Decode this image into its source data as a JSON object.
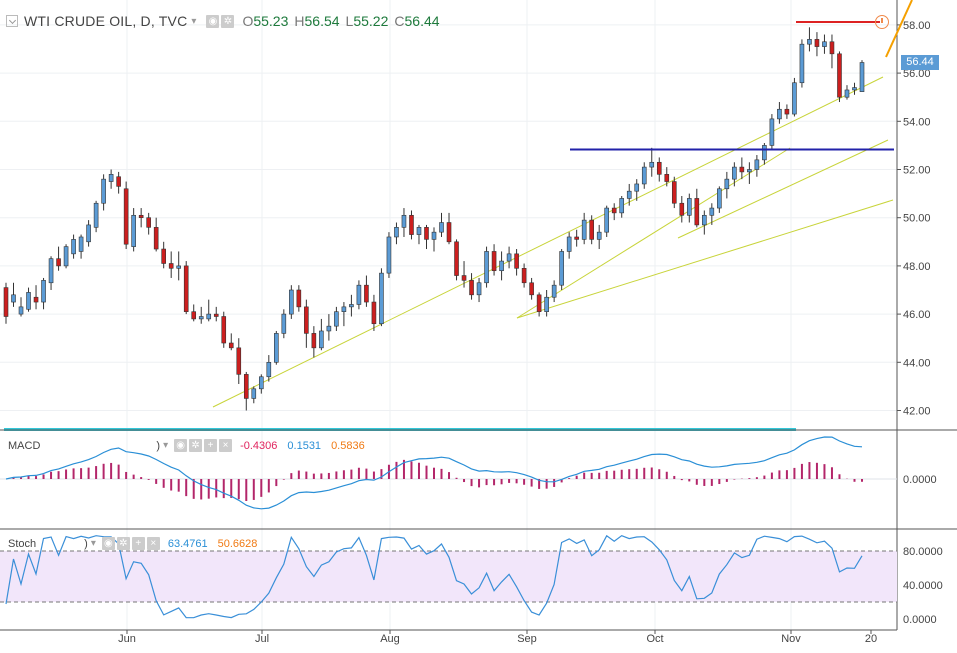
{
  "header": {
    "symbol_title": "WTI CRUDE OIL, D, TVC",
    "ohlc": [
      {
        "label": "O",
        "value": "55.23"
      },
      {
        "label": "H",
        "value": "56.54"
      },
      {
        "label": "L",
        "value": "55.22"
      },
      {
        "label": "C",
        "value": "56.44"
      }
    ]
  },
  "last_price_tag": "56.44",
  "price_axis_labels": [
    "58.00",
    "56.00",
    "54.00",
    "52.00",
    "50.00",
    "48.00",
    "46.00",
    "44.00",
    "42.00"
  ],
  "time_axis_labels": [
    "Jun",
    "Jul",
    "Aug",
    "Sep",
    "Oct",
    "Nov",
    "20"
  ],
  "macd": {
    "name": "MACD",
    "paren": ")",
    "values": [
      "-0.4306",
      "0.1531",
      "0.5836"
    ],
    "axis_label": "0.0000"
  },
  "stoch": {
    "name": "Stoch",
    "paren": ")",
    "values": [
      "63.4761",
      "50.6628"
    ],
    "axis_labels": [
      "80.0000",
      "40.0000",
      "0.0000"
    ]
  },
  "colors": {
    "up": "#5b9bd5",
    "down": "#cc1f1f",
    "trendline": "#c8d43a",
    "resistance": "#2222aa",
    "top_line": "#dd2222",
    "orange_line": "#f5a000",
    "macd_line": "#2a8fd6",
    "macd_hist": "#b3266a",
    "stoch_line": "#3a8fd8",
    "stoch_band": "#f2e6fa"
  },
  "chart_data": [
    {
      "type": "candlestick",
      "title": "WTI CRUDE OIL, D, TVC",
      "y_axis_labels": [
        42,
        44,
        46,
        48,
        50,
        52,
        54,
        56,
        58
      ],
      "x_ticks": [
        "Jun",
        "Jul",
        "Aug",
        "Sep",
        "Oct",
        "Nov",
        "20"
      ],
      "ohlc": [
        [
          47.1,
          47.3,
          45.6,
          45.9
        ],
        [
          46.5,
          47.3,
          46.3,
          46.8
        ],
        [
          46.0,
          46.7,
          45.9,
          46.3
        ],
        [
          46.2,
          47.1,
          46.1,
          46.9
        ],
        [
          46.7,
          47.2,
          46.2,
          46.5
        ],
        [
          46.5,
          47.5,
          46.2,
          47.4
        ],
        [
          47.3,
          48.4,
          47.0,
          48.3
        ],
        [
          48.3,
          48.8,
          47.8,
          48.0
        ],
        [
          48.0,
          48.9,
          47.9,
          48.8
        ],
        [
          48.5,
          49.3,
          48.3,
          49.1
        ],
        [
          48.6,
          49.3,
          48.3,
          49.2
        ],
        [
          49.0,
          49.9,
          48.8,
          49.7
        ],
        [
          49.6,
          50.7,
          49.4,
          50.6
        ],
        [
          50.6,
          51.8,
          50.3,
          51.6
        ],
        [
          51.5,
          52.0,
          51.2,
          51.8
        ],
        [
          51.7,
          51.9,
          51.0,
          51.3
        ],
        [
          51.2,
          51.5,
          48.7,
          48.9
        ],
        [
          48.8,
          50.4,
          48.6,
          50.1
        ],
        [
          50.1,
          50.4,
          49.6,
          50.0
        ],
        [
          50.0,
          50.2,
          49.3,
          49.6
        ],
        [
          49.6,
          50.0,
          48.6,
          48.7
        ],
        [
          48.7,
          49.0,
          47.9,
          48.1
        ],
        [
          48.1,
          48.6,
          47.5,
          47.9
        ],
        [
          47.9,
          48.6,
          47.4,
          48.0
        ],
        [
          48.0,
          48.2,
          46.0,
          46.1
        ],
        [
          46.1,
          46.4,
          45.7,
          45.8
        ],
        [
          45.8,
          46.3,
          45.6,
          45.9
        ],
        [
          45.8,
          46.6,
          45.7,
          46.0
        ],
        [
          46.0,
          46.3,
          45.7,
          45.9
        ],
        [
          45.9,
          46.1,
          44.6,
          44.8
        ],
        [
          44.8,
          45.2,
          44.5,
          44.6
        ],
        [
          44.6,
          45.0,
          43.1,
          43.5
        ],
        [
          43.5,
          43.6,
          42.0,
          42.5
        ],
        [
          42.5,
          43.0,
          42.3,
          42.9
        ],
        [
          42.9,
          43.5,
          42.7,
          43.4
        ],
        [
          43.4,
          44.3,
          43.2,
          44.0
        ],
        [
          44.0,
          45.3,
          43.9,
          45.2
        ],
        [
          45.2,
          46.2,
          45.0,
          46.0
        ],
        [
          46.0,
          47.2,
          45.8,
          47.0
        ],
        [
          47.0,
          47.2,
          46.1,
          46.3
        ],
        [
          46.3,
          46.6,
          44.6,
          45.2
        ],
        [
          45.2,
          45.5,
          44.2,
          44.6
        ],
        [
          44.6,
          45.8,
          44.5,
          45.3
        ],
        [
          45.3,
          46.0,
          44.9,
          45.5
        ],
        [
          45.5,
          46.3,
          45.3,
          46.1
        ],
        [
          46.1,
          46.5,
          45.5,
          46.3
        ],
        [
          46.3,
          46.8,
          45.9,
          46.4
        ],
        [
          46.4,
          47.4,
          46.2,
          47.2
        ],
        [
          47.2,
          47.6,
          46.3,
          46.5
        ],
        [
          46.5,
          46.8,
          45.3,
          45.6
        ],
        [
          45.6,
          47.9,
          45.5,
          47.7
        ],
        [
          47.7,
          49.4,
          47.5,
          49.2
        ],
        [
          49.2,
          49.8,
          48.9,
          49.6
        ],
        [
          49.6,
          50.4,
          49.2,
          50.1
        ],
        [
          50.1,
          50.3,
          49.1,
          49.3
        ],
        [
          49.3,
          49.7,
          48.9,
          49.6
        ],
        [
          49.6,
          49.7,
          48.7,
          49.1
        ],
        [
          49.1,
          49.6,
          48.6,
          49.4
        ],
        [
          49.4,
          50.2,
          49.2,
          49.8
        ],
        [
          49.8,
          50.2,
          48.9,
          49.0
        ],
        [
          49.0,
          49.1,
          47.4,
          47.6
        ],
        [
          47.6,
          48.2,
          47.1,
          47.4
        ],
        [
          47.4,
          47.7,
          46.6,
          46.8
        ],
        [
          46.8,
          47.5,
          46.5,
          47.3
        ],
        [
          47.3,
          48.8,
          47.1,
          48.6
        ],
        [
          48.6,
          48.9,
          47.6,
          47.8
        ],
        [
          47.8,
          48.6,
          47.4,
          48.2
        ],
        [
          48.2,
          48.8,
          47.9,
          48.5
        ],
        [
          48.5,
          48.7,
          47.6,
          47.9
        ],
        [
          47.9,
          48.1,
          47.1,
          47.3
        ],
        [
          47.3,
          47.5,
          46.6,
          46.8
        ],
        [
          46.8,
          46.9,
          45.9,
          46.1
        ],
        [
          46.1,
          47.0,
          45.9,
          46.7
        ],
        [
          46.7,
          47.4,
          46.5,
          47.2
        ],
        [
          47.2,
          48.7,
          47.0,
          48.6
        ],
        [
          48.6,
          49.4,
          48.3,
          49.2
        ],
        [
          49.2,
          49.5,
          48.8,
          49.1
        ],
        [
          49.1,
          50.2,
          48.9,
          49.9
        ],
        [
          49.9,
          50.1,
          48.9,
          49.1
        ],
        [
          49.1,
          49.7,
          48.7,
          49.4
        ],
        [
          49.4,
          50.5,
          49.2,
          50.4
        ],
        [
          50.4,
          50.6,
          49.9,
          50.2
        ],
        [
          50.2,
          50.9,
          50.0,
          50.8
        ],
        [
          50.8,
          51.4,
          50.5,
          51.1
        ],
        [
          51.1,
          51.6,
          50.7,
          51.4
        ],
        [
          51.4,
          52.3,
          51.2,
          52.1
        ],
        [
          52.1,
          52.9,
          51.7,
          52.3
        ],
        [
          52.3,
          52.5,
          51.5,
          51.8
        ],
        [
          51.8,
          52.1,
          51.3,
          51.5
        ],
        [
          51.5,
          51.7,
          50.4,
          50.6
        ],
        [
          50.6,
          50.9,
          49.8,
          50.1
        ],
        [
          50.1,
          51.0,
          49.8,
          50.8
        ],
        [
          50.8,
          51.2,
          49.6,
          49.7
        ],
        [
          49.7,
          50.3,
          49.3,
          50.1
        ],
        [
          50.1,
          50.6,
          49.7,
          50.4
        ],
        [
          50.4,
          51.3,
          50.2,
          51.2
        ],
        [
          51.2,
          51.9,
          50.8,
          51.6
        ],
        [
          51.6,
          52.3,
          51.3,
          52.1
        ],
        [
          52.1,
          52.5,
          51.6,
          51.9
        ],
        [
          51.9,
          52.3,
          51.4,
          52.0
        ],
        [
          52.0,
          52.6,
          51.7,
          52.4
        ],
        [
          52.4,
          53.1,
          52.2,
          53.0
        ],
        [
          53.0,
          54.3,
          52.8,
          54.1
        ],
        [
          54.1,
          54.8,
          53.9,
          54.5
        ],
        [
          54.5,
          54.7,
          54.1,
          54.3
        ],
        [
          54.3,
          55.8,
          54.2,
          55.6
        ],
        [
          55.6,
          57.4,
          55.4,
          57.2
        ],
        [
          57.2,
          57.9,
          56.9,
          57.4
        ],
        [
          57.4,
          57.7,
          56.7,
          57.1
        ],
        [
          57.1,
          57.6,
          56.8,
          57.3
        ],
        [
          57.3,
          57.6,
          56.2,
          56.8
        ],
        [
          56.8,
          56.9,
          54.8,
          55.0
        ],
        [
          55.0,
          55.5,
          54.9,
          55.3
        ],
        [
          55.3,
          55.6,
          55.1,
          55.4
        ],
        [
          55.23,
          56.54,
          55.22,
          56.44
        ]
      ]
    },
    {
      "type": "line",
      "title": "MACD",
      "legend_values": [
        -0.4306,
        0.1531,
        0.5836
      ],
      "y_axis_labels": [
        0.0
      ]
    },
    {
      "type": "line",
      "title": "Stoch",
      "legend_values": [
        63.4761,
        50.6628
      ],
      "y_axis_labels": [
        80,
        40,
        0
      ],
      "band": [
        20,
        80
      ]
    }
  ]
}
